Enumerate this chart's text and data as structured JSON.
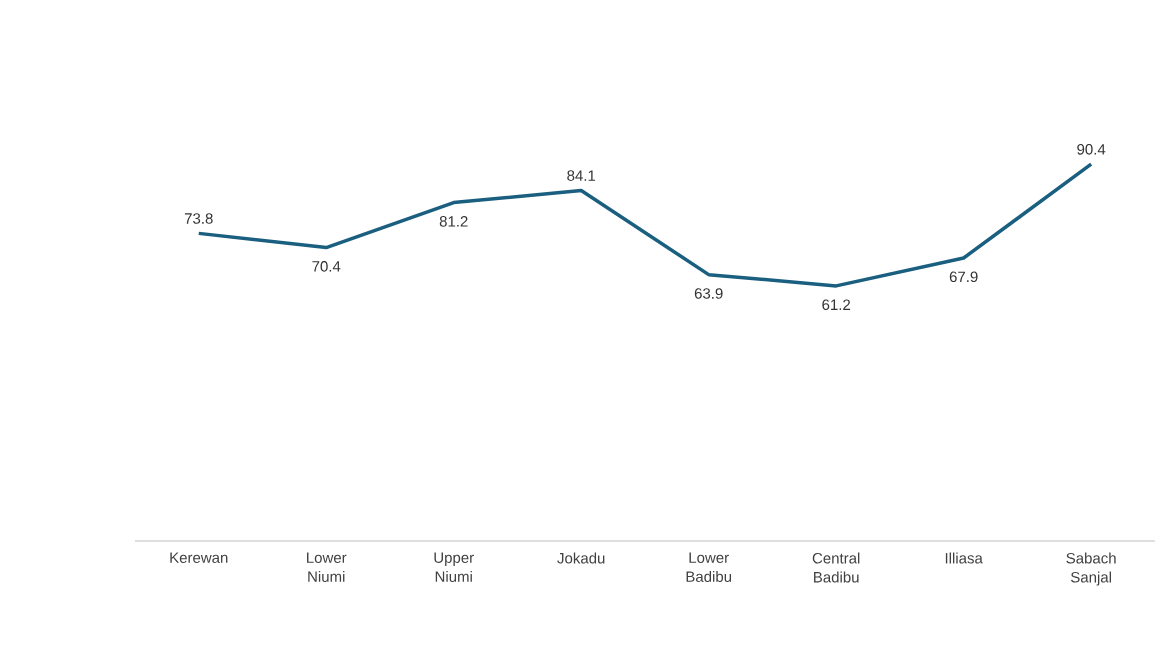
{
  "chart_data": {
    "type": "line",
    "categories": [
      "Kerewan",
      "Lower Niumi",
      "Upper Niumi",
      "Jokadu",
      "Lower Badibu",
      "Central Badibu",
      "Illiasa",
      "Sabach Sanjal"
    ],
    "values": [
      73.8,
      70.4,
      81.2,
      84.1,
      63.9,
      61.2,
      67.9,
      90.4
    ],
    "color": "#1a5f7f",
    "data_labels": true,
    "marker": "none"
  }
}
